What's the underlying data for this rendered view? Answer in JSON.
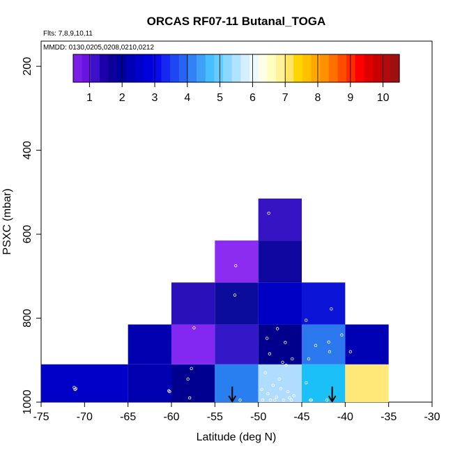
{
  "chart_data": {
    "type": "heatmap",
    "title": "ORCAS RF07-11 Butanal_TOGA",
    "notes": {
      "flights": "Flts: 7,8,9,10,11",
      "dates": "MMDD: 0130,0205,0208,0210,0212"
    },
    "xlabel": "Latitude (deg N)",
    "ylabel": "PSXC (mbar)",
    "xlim": [
      -75,
      -30
    ],
    "ylim": [
      1000,
      140
    ],
    "xticks": [
      -75,
      -70,
      -65,
      -60,
      -55,
      -50,
      -45,
      -40,
      -35,
      -30
    ],
    "xtick_labels": [
      "-75",
      "-70",
      "-65",
      "-60",
      "-55",
      "-50",
      "-45",
      "-40",
      "-35",
      "-30"
    ],
    "yticks": [
      200,
      400,
      600,
      800,
      1000
    ],
    "ytick_labels": [
      "200",
      "400",
      "600",
      "800",
      "1000"
    ],
    "colorbar": {
      "min": 0.5,
      "max": 10.5,
      "ticks": [
        1,
        2,
        3,
        4,
        5,
        6,
        7,
        8,
        9,
        10
      ],
      "tick_labels": [
        "1",
        "2",
        "3",
        "4",
        "5",
        "6",
        "7",
        "8",
        "9",
        "10"
      ],
      "palette": [
        "#7b1fe6",
        "#6a12e0",
        "#3c0fc8",
        "#1e00a8",
        "#0b009a",
        "#0000a0",
        "#0000b4",
        "#0000c8",
        "#0000dc",
        "#0a0aee",
        "#1428f0",
        "#1e46f2",
        "#2864f4",
        "#3282f6",
        "#3ca0f8",
        "#46beff",
        "#64cbff",
        "#8ad7ff",
        "#b0e3ff",
        "#d6efff",
        "#eef8ff",
        "#ffffe8",
        "#ffffc0",
        "#fff39a",
        "#ffe466",
        "#ffd500",
        "#ffc000",
        "#ffa800",
        "#ff9000",
        "#ff7000",
        "#ff4d00",
        "#ff2800",
        "#ff0000",
        "#e00000",
        "#c80000",
        "#b00c10",
        "#9c1010"
      ]
    },
    "cells": [
      {
        "lat_min": -75,
        "lat_max": -65,
        "p_min": 910,
        "p_max": 1000,
        "value": 2.4,
        "color": "#0000c8"
      },
      {
        "lat_min": -65,
        "lat_max": -60,
        "p_min": 910,
        "p_max": 1000,
        "value": 2.1,
        "color": "#0000b0"
      },
      {
        "lat_min": -65,
        "lat_max": -60,
        "p_min": 815,
        "p_max": 910,
        "value": 2.1,
        "color": "#0000b0"
      },
      {
        "lat_min": -60,
        "lat_max": -55,
        "p_min": 910,
        "p_max": 1000,
        "value": 1.9,
        "color": "#000090"
      },
      {
        "lat_min": -60,
        "lat_max": -55,
        "p_min": 815,
        "p_max": 910,
        "value": 1.2,
        "color": "#8228f0"
      },
      {
        "lat_min": -60,
        "lat_max": -55,
        "p_min": 715,
        "p_max": 815,
        "value": 2.3,
        "color": "#2a10b8"
      },
      {
        "lat_min": -55,
        "lat_max": -50,
        "p_min": 910,
        "p_max": 1000,
        "value": 4.0,
        "color": "#2a7ff0"
      },
      {
        "lat_min": -55,
        "lat_max": -50,
        "p_min": 815,
        "p_max": 910,
        "value": 1.7,
        "color": "#3418c8"
      },
      {
        "lat_min": -55,
        "lat_max": -50,
        "p_min": 715,
        "p_max": 815,
        "value": 2.0,
        "color": "#0c0c9c"
      },
      {
        "lat_min": -55,
        "lat_max": -50,
        "p_min": 615,
        "p_max": 715,
        "value": 1.0,
        "color": "#8c2cf0"
      },
      {
        "lat_min": -50,
        "lat_max": -45,
        "p_min": 910,
        "p_max": 1000,
        "value": 5.5,
        "color": "#b0dcff"
      },
      {
        "lat_min": -50,
        "lat_max": -45,
        "p_min": 815,
        "p_max": 910,
        "value": 1.8,
        "color": "#00008c"
      },
      {
        "lat_min": -50,
        "lat_max": -45,
        "p_min": 715,
        "p_max": 815,
        "value": 2.2,
        "color": "#0000c4"
      },
      {
        "lat_min": -50,
        "lat_max": -45,
        "p_min": 615,
        "p_max": 715,
        "value": 2.0,
        "color": "#1006a0"
      },
      {
        "lat_min": -50,
        "lat_max": -45,
        "p_min": 515,
        "p_max": 615,
        "value": 1.6,
        "color": "#3614c4"
      },
      {
        "lat_min": -45,
        "lat_max": -40,
        "p_min": 910,
        "p_max": 1000,
        "value": 4.4,
        "color": "#1cc0f8"
      },
      {
        "lat_min": -45,
        "lat_max": -40,
        "p_min": 815,
        "p_max": 910,
        "value": 3.8,
        "color": "#2c78ee"
      },
      {
        "lat_min": -45,
        "lat_max": -40,
        "p_min": 715,
        "p_max": 815,
        "value": 2.6,
        "color": "#0c14d8"
      },
      {
        "lat_min": -40,
        "lat_max": -35,
        "p_min": 910,
        "p_max": 1000,
        "value": 7.4,
        "color": "#ffe878"
      },
      {
        "lat_min": -40,
        "lat_max": -35,
        "p_min": 815,
        "p_max": 910,
        "value": 2.2,
        "color": "#0000b4"
      }
    ],
    "points": [
      [
        -71.2,
        965
      ],
      [
        -71.0,
        968
      ],
      [
        -71.1,
        970
      ],
      [
        -60.3,
        973
      ],
      [
        -60.2,
        975
      ],
      [
        -57.4,
        823
      ],
      [
        -57.7,
        920
      ],
      [
        -58.1,
        945
      ],
      [
        -57.9,
        990
      ],
      [
        -52.6,
        675
      ],
      [
        -52.7,
        745
      ],
      [
        -52.1,
        1000
      ],
      [
        -48.8,
        550
      ],
      [
        -49.0,
        848
      ],
      [
        -47.8,
        825
      ],
      [
        -46.9,
        858
      ],
      [
        -48.7,
        885
      ],
      [
        -46.1,
        897
      ],
      [
        -47.2,
        905
      ],
      [
        -46.8,
        912
      ],
      [
        -49.2,
        930
      ],
      [
        -47.6,
        945
      ],
      [
        -48.3,
        960
      ],
      [
        -47.4,
        968
      ],
      [
        -46.6,
        975
      ],
      [
        -48.9,
        980
      ],
      [
        -47.9,
        988
      ],
      [
        -49.5,
        995
      ],
      [
        -48.6,
        997
      ],
      [
        -47.1,
        999
      ],
      [
        -46.2,
        996
      ],
      [
        -45.9,
        985
      ],
      [
        -49.6,
        970
      ],
      [
        -46.4,
        990
      ],
      [
        -48.1,
        1000
      ],
      [
        -44.5,
        805
      ],
      [
        -41.6,
        778
      ],
      [
        -43.4,
        865
      ],
      [
        -41.9,
        857
      ],
      [
        -44.2,
        897
      ],
      [
        -41.8,
        880
      ],
      [
        -44.5,
        954
      ],
      [
        -43.9,
        995
      ],
      [
        -44.0,
        1000
      ],
      [
        -42.1,
        1000
      ],
      [
        -40.4,
        840
      ],
      [
        -39.4,
        880
      ]
    ],
    "arrows": [
      {
        "lat": -53.0,
        "p_top": 963,
        "p_bottom": 1003
      },
      {
        "lat": -41.5,
        "p_top": 963,
        "p_bottom": 1003
      }
    ]
  }
}
